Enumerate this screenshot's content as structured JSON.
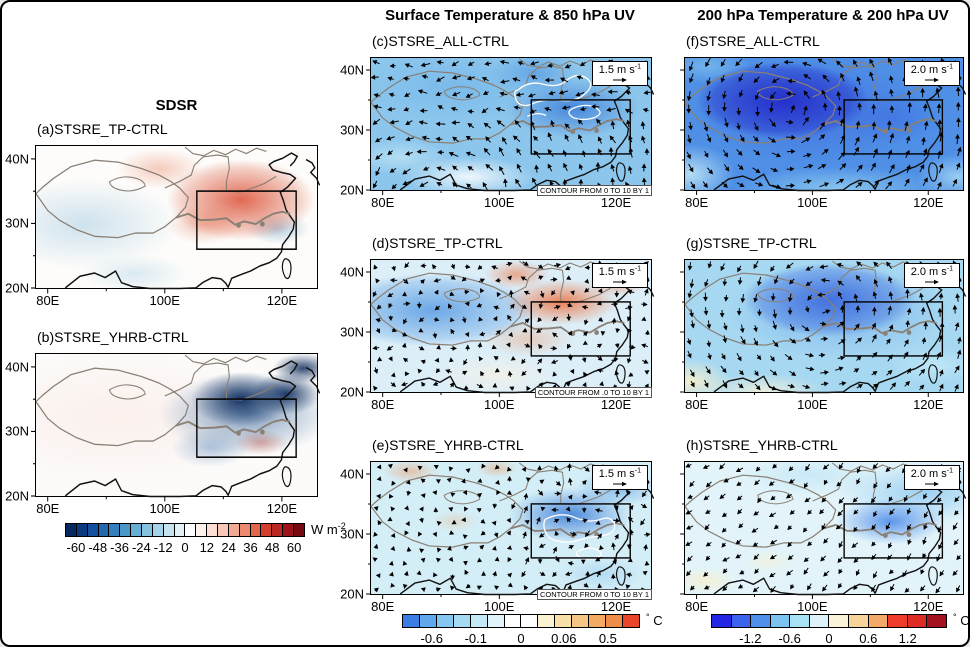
{
  "figure": {
    "vector_exp": "-1",
    "axis": {
      "x_labels": [
        "80E",
        "100E",
        "120E"
      ],
      "y_labels": [
        "40N",
        "30N",
        "20N"
      ]
    },
    "columns": {
      "left": {
        "title": "SDSR",
        "colorbar": {
          "ticks": [
            "-60",
            "-48",
            "-36",
            "-24",
            "-12",
            "0",
            "12",
            "24",
            "36",
            "48",
            "60"
          ],
          "unit_a": "W m",
          "unit_sup": "-2",
          "unit_b": "",
          "colors": [
            "#08275f",
            "#0c3a80",
            "#15509c",
            "#2367ae",
            "#3580bc",
            "#4b97c8",
            "#66aed4",
            "#85c2de",
            "#a5d4e8",
            "#c6e4ef",
            "#e1f1f6",
            "#fbfdfe",
            "#fdf1ec",
            "#fbdfd5",
            "#f8c7b8",
            "#f3aa94",
            "#ec8a70",
            "#e2664c",
            "#d4402f",
            "#bc2723",
            "#9c131b",
            "#750a13"
          ]
        }
      },
      "middle": {
        "title": "Surface Temperature & 850 hPa UV",
        "colorbar": {
          "ticks": [
            "-0.6",
            "-0.1",
            "0",
            "0.06",
            "0.5"
          ],
          "unit_a": "",
          "unit_sup": "°",
          "unit_b": " C",
          "colors": [
            "#3c7de4",
            "#5fa8ec",
            "#85c7f0",
            "#a6daf3",
            "#c4eaf6",
            "#e1f4fa",
            "#ffffff",
            "#ffffff",
            "#f9f3d4",
            "#f8e1a9",
            "#f6c683",
            "#f3aa62",
            "#ef8c4a",
            "#e8452a"
          ]
        }
      },
      "right": {
        "title": "200 hPa Temperature & 200 hPa UV",
        "colorbar": {
          "ticks": [
            "-1.2",
            "-0.6",
            "0",
            "0.6",
            "1.2"
          ],
          "unit_a": "",
          "unit_sup": "°",
          "unit_b": " C",
          "colors": [
            "#2525e6",
            "#3b63ee",
            "#4f90ea",
            "#7cc4f0",
            "#a8e0f4",
            "#ddf2fa",
            "#faf3da",
            "#f7d49a",
            "#f2a96a",
            "#ee3b2a",
            "#de2b23",
            "#a51220"
          ]
        }
      }
    },
    "panels": [
      {
        "id": "a",
        "label": "(a)STSRE_TP-CTRL"
      },
      {
        "id": "b",
        "label": "(b)STSRE_YHRB-CTRL"
      },
      {
        "id": "c",
        "label": "(c)STSRE_ALL-CTRL",
        "vector_ref": "1.5 m s",
        "contour_note": "CONTOUR FROM 0 TO 10 BY 1"
      },
      {
        "id": "d",
        "label": "(d)STSRE_TP-CTRL",
        "vector_ref": "1.5 m s",
        "contour_note": "CONTOUR FROM .0 TO 10 BY 1"
      },
      {
        "id": "e",
        "label": "(e)STSRE_YHRB-CTRL",
        "vector_ref": "1.5 m s",
        "contour_note": "CONTOUR FROM 0 TO 10 BY 1"
      },
      {
        "id": "f",
        "label": "(f)STSRE_ALL-CTRL",
        "vector_ref": "2.0 m s"
      },
      {
        "id": "g",
        "label": "(g)STSRE_TP-CTRL",
        "vector_ref": "2.0 m s"
      },
      {
        "id": "h",
        "label": "(h)STSRE_YHRB-CTRL",
        "vector_ref": "2.0 m s"
      }
    ]
  },
  "chart_data": {
    "type": "heatmap",
    "figure_kind": "multi-panel geographic anomaly maps (model experiment minus control)",
    "map_extent": {
      "lon_E": [
        78,
        126
      ],
      "lat_N": [
        20,
        42
      ]
    },
    "highlight_box": {
      "lon_E": [
        105.5,
        122.5
      ],
      "lat_N": [
        26,
        35
      ]
    },
    "x_tick_labels": [
      "80E",
      "100E",
      "120E"
    ],
    "y_tick_labels": [
      "40N",
      "30N",
      "20N"
    ],
    "columns": [
      {
        "title": "SDSR",
        "unit": "W m-2",
        "colorbar_ticks": [
          -60,
          -48,
          -36,
          -24,
          -12,
          0,
          12,
          24,
          36,
          48,
          60
        ],
        "panels": [
          {
            "label": "(a)STSRE_TP-CTRL",
            "summary": "Positive SDSR anomalies ~+12 to +48 W m-2 over eastern China inside the box; weak negative blue speckle over the Tibetan Plateau, southwest domain and southeast coast."
          },
          {
            "label": "(b)STSRE_YHRB-CTRL",
            "summary": "Strong negative SDSR anomalies ~-36 to -60 W m-2 over the Yangtze-Huai River Basin box and northeastern China; scattered weak positive anomalies along the southeast coast; near-zero elsewhere."
          }
        ]
      },
      {
        "title": "Surface Temperature & 850 hPa UV",
        "unit": "degC",
        "colorbar_ticks": [
          -0.6,
          -0.1,
          0,
          0.06,
          0.5
        ],
        "vector_reference_m_s": 1.5,
        "contour_note": "CONTOUR FROM 0 TO 10 BY 1",
        "panels": [
          {
            "label": "(c)STSRE_ALL-CTRL",
            "summary": "Widespread surface cooling ~-0.1 to -0.6 C over the whole domain, strongest (blue) inside the eastern China box with white contour lines; 850 hPa wind anomaly vectors throughout."
          },
          {
            "label": "(d)STSRE_TP-CTRL",
            "summary": "Cooling ~-0.1 to -0.6 C over the Tibetan Plateau; warming ~+0.06 to +0.5 C (orange/red) inside the eastern China box; weak scattered wind anomalies."
          },
          {
            "label": "(e)STSRE_YHRB-CTRL",
            "summary": "Weak cooling overall with small warm speckles in the north; stronger cooling ~-0.6 C (blue with white contours) inside the Yangtze-Huai box; weak winds in the west, stronger near the box."
          }
        ]
      },
      {
        "title": "200 hPa Temperature & 200 hPa UV",
        "unit": "degC",
        "colorbar_ticks": [
          -1.2,
          -0.6,
          0,
          0.6,
          1.2
        ],
        "vector_reference_m_s": 2.0,
        "panels": [
          {
            "label": "(f)STSRE_ALL-CTRL",
            "summary": "Strong 200 hPa cooling beyond -1.2 C centered near 95-100E, 30-35N with a pronounced cyclonic wind anomaly circulation; pale cooling along the southern edge."
          },
          {
            "label": "(g)STSRE_TP-CTRL",
            "summary": "Moderate 200 hPa cooling -0.6 to -1.2 C centered over/east of the plateau with cyclonic circulation; weak warm (cream) anomalies in the southwest corner and along the south."
          },
          {
            "label": "(h)STSRE_YHRB-CTRL",
            "summary": "Mostly weak cooling; a -0.6 C blue anomaly inside the eastern box with southwestward wind anomalies; faint warm cream patches in the southwest."
          }
        ]
      }
    ]
  }
}
